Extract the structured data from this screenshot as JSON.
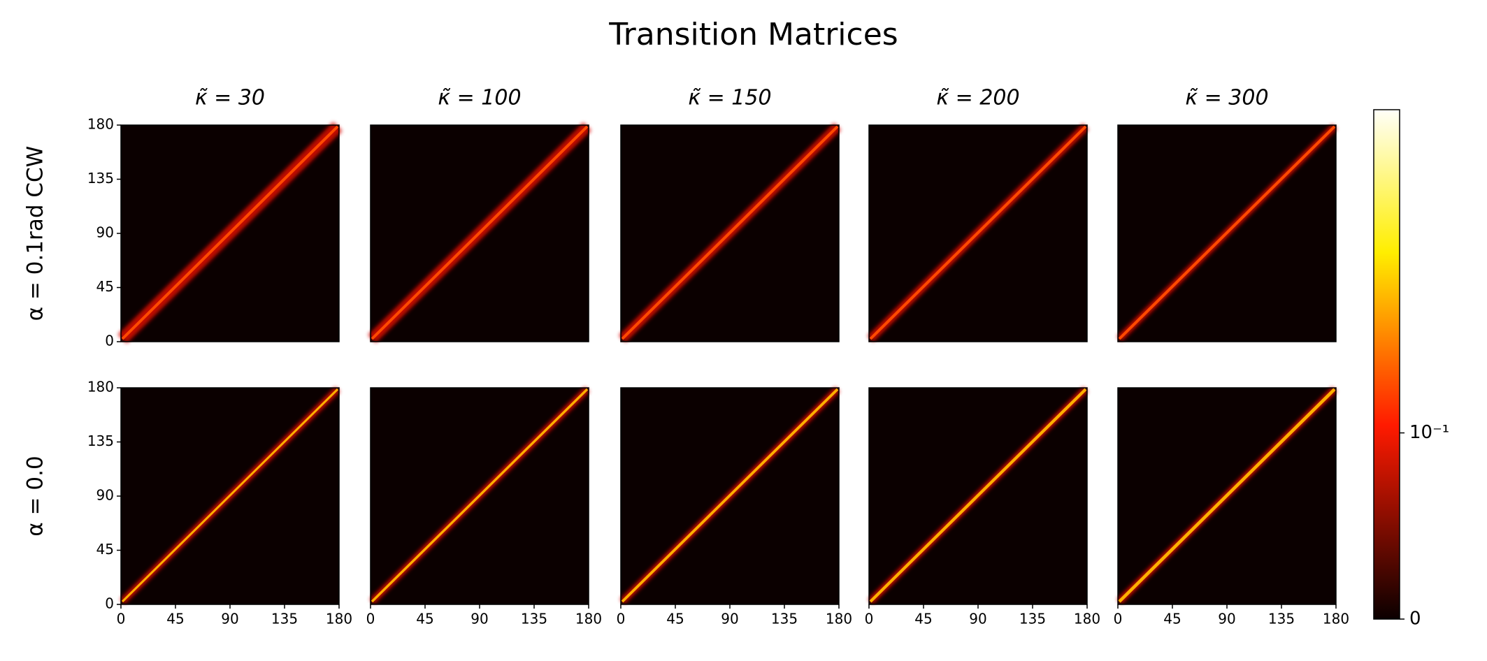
{
  "chart_data": {
    "type": "heatmap",
    "title": "Transition Matrices",
    "columns": [
      "κ̃ = 30",
      "κ̃ = 100",
      "κ̃ = 150",
      "κ̃ = 200",
      "κ̃ = 300"
    ],
    "rows": [
      "α = 0.1rad CCW",
      "α = 0.0"
    ],
    "xlim": [
      0,
      180
    ],
    "xticks": [
      0,
      45,
      90,
      135,
      180
    ],
    "ylim": [
      0,
      180
    ],
    "yticks": [
      0,
      45,
      90,
      135,
      180
    ],
    "colormap": "hot",
    "colorbar": {
      "scale": "symlog",
      "lim": [
        0,
        1
      ],
      "ticks": [
        0,
        {
          "value": 0.1,
          "label": "10⁻¹"
        }
      ]
    }
  }
}
